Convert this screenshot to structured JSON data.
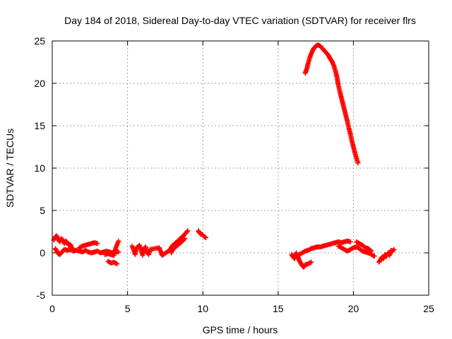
{
  "chart_data": {
    "type": "scatter",
    "title": "Day 184 of 2018, Sidereal Day-to-day VTEC variation (SDTVAR) for receiver flrs",
    "xlabel": "GPS time / hours",
    "ylabel": "SDTVAR / TECUs",
    "xlim": [
      0,
      25
    ],
    "ylim": [
      -5,
      25
    ],
    "xticks": [
      0,
      5,
      10,
      15,
      20,
      25
    ],
    "yticks": [
      -5,
      0,
      5,
      10,
      15,
      20,
      25
    ],
    "grid": true,
    "marker": "+",
    "color": "#ff0000",
    "series": [
      {
        "points": [
          [
            0.1,
            1.5
          ],
          [
            0.2,
            1.9
          ],
          [
            0.3,
            2.0
          ],
          [
            0.4,
            1.6
          ],
          [
            0.5,
            1.3
          ],
          [
            0.6,
            1.7
          ],
          [
            0.7,
            1.5
          ],
          [
            0.8,
            1.1
          ],
          [
            0.9,
            1.4
          ],
          [
            1.0,
            1.2
          ],
          [
            1.1,
            0.9
          ],
          [
            1.2,
            1.0
          ],
          [
            1.3,
            0.6
          ],
          [
            1.4,
            0.4
          ],
          [
            0.2,
            0.5
          ],
          [
            0.3,
            0.2
          ],
          [
            0.4,
            -0.1
          ],
          [
            0.5,
            -0.2
          ],
          [
            0.6,
            0.0
          ],
          [
            0.7,
            0.2
          ],
          [
            0.8,
            0.4
          ],
          [
            1.0,
            0.3
          ],
          [
            1.2,
            0.4
          ],
          [
            1.4,
            0.2
          ],
          [
            1.6,
            0.3
          ],
          [
            1.8,
            0.2
          ],
          [
            2.0,
            0.1
          ],
          [
            2.2,
            0.3
          ],
          [
            2.4,
            0.1
          ],
          [
            2.6,
            0.0
          ],
          [
            2.8,
            0.1
          ],
          [
            3.0,
            0.2
          ],
          [
            3.2,
            0.0
          ],
          [
            3.4,
            0.1
          ],
          [
            3.6,
            0.2
          ],
          [
            3.8,
            0.1
          ],
          [
            4.0,
            0.0
          ],
          [
            4.2,
            0.2
          ],
          [
            4.4,
            0.1
          ],
          [
            1.8,
            0.6
          ],
          [
            2.0,
            0.8
          ],
          [
            2.2,
            0.9
          ],
          [
            2.4,
            1.0
          ],
          [
            2.6,
            1.1
          ],
          [
            2.8,
            1.2
          ],
          [
            3.0,
            1.1
          ],
          [
            3.5,
            -0.2
          ],
          [
            3.7,
            -0.1
          ],
          [
            3.9,
            -0.2
          ],
          [
            4.1,
            -0.3
          ],
          [
            4.2,
            0.5
          ],
          [
            4.4,
            1.4
          ],
          [
            3.7,
            -1.0
          ],
          [
            3.9,
            -1.2
          ],
          [
            4.1,
            -1.1
          ],
          [
            4.3,
            -1.3
          ],
          [
            5.3,
            0.8
          ],
          [
            5.4,
            0.4
          ],
          [
            5.5,
            -0.2
          ],
          [
            5.6,
            0.6
          ],
          [
            5.8,
            0.9
          ],
          [
            5.9,
            0.3
          ],
          [
            6.0,
            -0.3
          ],
          [
            6.1,
            0.5
          ],
          [
            6.2,
            0.7
          ],
          [
            6.3,
            0.1
          ],
          [
            6.4,
            -0.2
          ],
          [
            6.5,
            0.4
          ],
          [
            7.1,
            0.6
          ],
          [
            7.2,
            0.2
          ],
          [
            7.3,
            -0.3
          ],
          [
            7.7,
            0.2
          ],
          [
            7.8,
            0.3
          ],
          [
            7.9,
            0.6
          ],
          [
            8.0,
            0.9
          ],
          [
            8.1,
            1.0
          ],
          [
            8.2,
            1.2
          ],
          [
            8.3,
            1.3
          ],
          [
            8.4,
            1.5
          ],
          [
            8.5,
            1.7
          ],
          [
            8.6,
            1.8
          ],
          [
            8.7,
            2.0
          ],
          [
            8.8,
            2.2
          ],
          [
            8.9,
            2.4
          ],
          [
            9.0,
            2.6
          ],
          [
            7.9,
            0.0
          ],
          [
            8.0,
            0.4
          ],
          [
            8.2,
            0.7
          ],
          [
            8.4,
            1.0
          ],
          [
            8.6,
            1.3
          ],
          [
            8.8,
            1.7
          ],
          [
            9.7,
            2.6
          ],
          [
            9.8,
            2.3
          ],
          [
            9.9,
            2.2
          ],
          [
            10.0,
            2.1
          ],
          [
            10.1,
            1.9
          ],
          [
            10.2,
            1.8
          ],
          [
            15.9,
            -0.2
          ],
          [
            16.0,
            -0.5
          ],
          [
            16.1,
            -0.7
          ],
          [
            16.2,
            0.0
          ],
          [
            16.3,
            -0.4
          ],
          [
            16.4,
            -0.9
          ],
          [
            16.5,
            -1.2
          ],
          [
            16.6,
            -1.5
          ],
          [
            16.7,
            -1.7
          ],
          [
            16.8,
            -1.4
          ],
          [
            17.0,
            -1.3
          ],
          [
            17.2,
            -1.1
          ],
          [
            16.4,
            -0.2
          ],
          [
            16.6,
            0.0
          ],
          [
            16.8,
            0.2
          ],
          [
            17.0,
            0.3
          ],
          [
            17.2,
            0.5
          ],
          [
            17.4,
            0.6
          ],
          [
            17.6,
            0.7
          ],
          [
            17.8,
            0.7
          ],
          [
            18.0,
            0.8
          ],
          [
            18.2,
            0.9
          ],
          [
            18.4,
            1.0
          ],
          [
            18.6,
            1.1
          ],
          [
            18.8,
            1.2
          ],
          [
            19.0,
            1.3
          ],
          [
            19.2,
            1.2
          ],
          [
            19.4,
            1.3
          ],
          [
            19.6,
            1.4
          ],
          [
            19.8,
            1.3
          ],
          [
            19.0,
            0.8
          ],
          [
            19.2,
            0.6
          ],
          [
            19.4,
            0.4
          ],
          [
            19.6,
            0.2
          ],
          [
            19.8,
            0.4
          ],
          [
            20.0,
            0.6
          ],
          [
            20.2,
            0.7
          ],
          [
            20.4,
            0.5
          ],
          [
            20.6,
            0.2
          ],
          [
            20.8,
            0.1
          ],
          [
            21.0,
            0.0
          ],
          [
            21.2,
            -0.2
          ],
          [
            21.4,
            -0.4
          ],
          [
            20.2,
            1.3
          ],
          [
            20.4,
            1.1
          ],
          [
            20.6,
            0.9
          ],
          [
            20.8,
            0.6
          ],
          [
            21.0,
            0.5
          ],
          [
            21.2,
            0.2
          ],
          [
            21.7,
            -1.1
          ],
          [
            21.8,
            -0.8
          ],
          [
            21.9,
            -0.5
          ],
          [
            22.0,
            -0.7
          ],
          [
            22.1,
            -0.2
          ],
          [
            22.2,
            -0.4
          ],
          [
            22.3,
            0.0
          ],
          [
            22.4,
            -0.3
          ],
          [
            22.5,
            0.3
          ],
          [
            22.6,
            0.2
          ],
          [
            22.7,
            0.4
          ]
        ]
      },
      {
        "points": [
          [
            16.8,
            21.2
          ],
          [
            16.9,
            21.7
          ],
          [
            17.0,
            22.4
          ],
          [
            17.1,
            23.0
          ],
          [
            17.2,
            23.5
          ],
          [
            17.3,
            23.9
          ],
          [
            17.4,
            24.2
          ],
          [
            17.5,
            24.4
          ],
          [
            17.6,
            24.5
          ],
          [
            17.7,
            24.5
          ],
          [
            17.8,
            24.4
          ],
          [
            17.9,
            24.2
          ],
          [
            18.0,
            24.0
          ],
          [
            18.1,
            23.8
          ],
          [
            18.2,
            23.6
          ],
          [
            18.3,
            23.4
          ],
          [
            18.4,
            23.1
          ],
          [
            18.5,
            22.8
          ],
          [
            18.6,
            22.5
          ],
          [
            18.7,
            22.1
          ],
          [
            18.8,
            21.5
          ],
          [
            18.9,
            20.8
          ],
          [
            19.0,
            19.8
          ],
          [
            19.1,
            19.0
          ],
          [
            19.2,
            18.3
          ],
          [
            19.3,
            17.6
          ],
          [
            19.4,
            16.9
          ],
          [
            19.5,
            16.2
          ],
          [
            19.6,
            15.5
          ],
          [
            19.7,
            14.7
          ],
          [
            19.8,
            14.0
          ],
          [
            19.9,
            13.2
          ],
          [
            20.0,
            12.5
          ],
          [
            20.1,
            11.8
          ],
          [
            20.2,
            11.2
          ],
          [
            20.3,
            10.6
          ]
        ]
      }
    ]
  }
}
